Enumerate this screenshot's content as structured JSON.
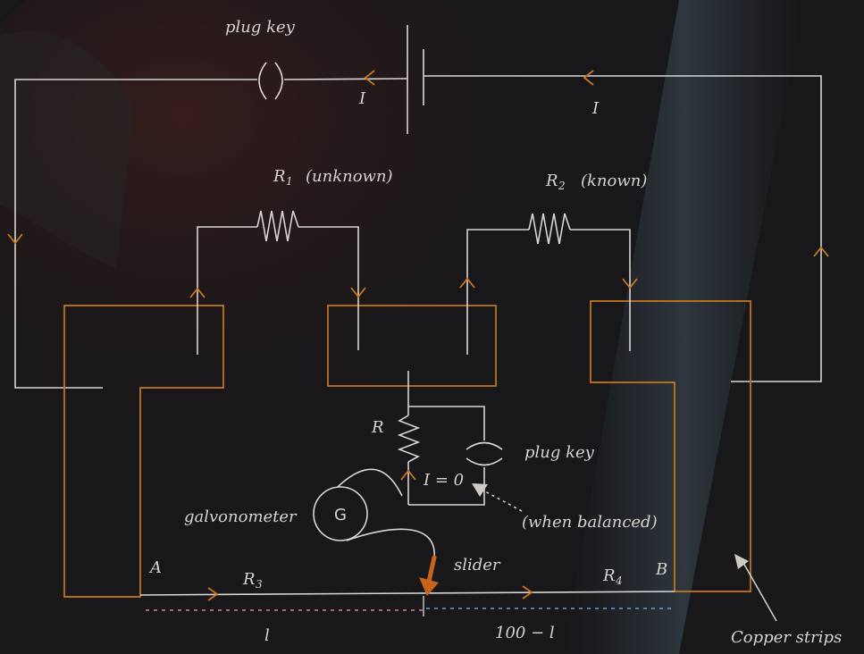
{
  "labels": {
    "plug_key_top": "plug key",
    "current_left": "I",
    "current_right": "I",
    "r1_symbol": "R",
    "r1_sub": "1",
    "r1_note": "(unknown)",
    "r2_symbol": "R",
    "r2_sub": "2",
    "r2_note": "(known)",
    "r_symbol": "R",
    "plug_key_mid": "plug key",
    "i_zero": "I = 0",
    "when_balanced": "(when balanced)",
    "galvanometer": "galvonometer",
    "galvanometer_letter": "G",
    "point_a": "A",
    "point_b": "B",
    "r3_symbol": "R",
    "r3_sub": "3",
    "r4_symbol": "R",
    "r4_sub": "4",
    "slider": "slider",
    "length_left": "l",
    "length_right": "100 − l",
    "copper_strips": "Copper strips"
  },
  "colors": {
    "background": "#18171a",
    "wire": "#d8d6d2",
    "copper": "#c7781e",
    "slider_arrow": "#c8641a",
    "dash_left": "#e07a8e",
    "dash_right": "#6d9bd6"
  }
}
